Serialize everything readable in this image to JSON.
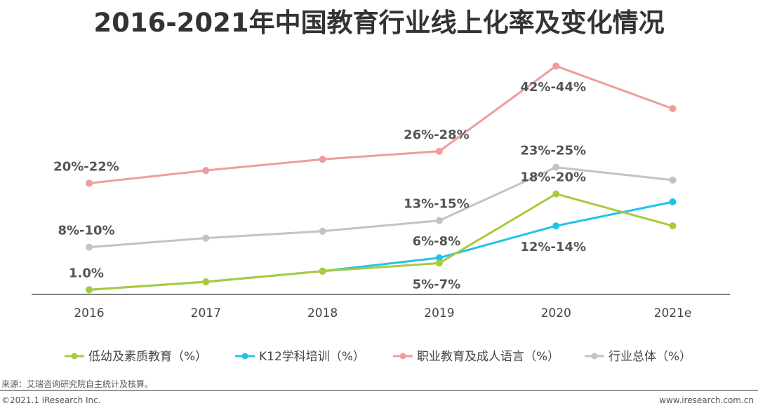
{
  "chart_data": {
    "type": "line",
    "title": "2016-2021年中国教育行业线上化率及变化情况",
    "categories": [
      "2016",
      "2017",
      "2018",
      "2019",
      "2020",
      "2021e"
    ],
    "ylim": [
      0,
      45
    ],
    "grid": false,
    "legend_position": "bottom",
    "series": [
      {
        "name": "低幼及素质教育（%）",
        "color": "#a8cb3c",
        "values": [
          1.0,
          2.5,
          4.5,
          6,
          19,
          13
        ]
      },
      {
        "name": "K12学科培训（%）",
        "color": "#22c3e8",
        "values": [
          1.0,
          2.5,
          4.5,
          7,
          13,
          17.5
        ]
      },
      {
        "name": "职业教育及成人语言（%）",
        "color": "#f09c9c",
        "values": [
          21,
          23.4,
          25.5,
          27,
          43,
          35
        ]
      },
      {
        "name": "行业总体（%）",
        "color": "#c3c3c3",
        "values": [
          9,
          10.7,
          12,
          14,
          24,
          21.6
        ]
      }
    ],
    "annotations": [
      {
        "series": 2,
        "x": 0,
        "text": "20%-22%",
        "pos": "above"
      },
      {
        "series": 3,
        "x": 0,
        "text": "8%-10%",
        "pos": "above"
      },
      {
        "series": 1,
        "x": 0,
        "text": "1.0%",
        "pos": "above"
      },
      {
        "series": 2,
        "x": 3,
        "text": "26%-28%",
        "pos": "above"
      },
      {
        "series": 3,
        "x": 3,
        "text": "13%-15%",
        "pos": "above"
      },
      {
        "series": 1,
        "x": 3,
        "text": "6%-8%",
        "pos": "above"
      },
      {
        "series": 0,
        "x": 3,
        "text": "5%-7%",
        "pos": "below"
      },
      {
        "series": 2,
        "x": 4,
        "text": "42%-44%",
        "pos": "below"
      },
      {
        "series": 3,
        "x": 4,
        "text": "23%-25%",
        "pos": "above"
      },
      {
        "series": 0,
        "x": 4,
        "text": "18%-20%",
        "pos": "above"
      },
      {
        "series": 1,
        "x": 4,
        "text": "12%-14%",
        "pos": "below"
      }
    ]
  },
  "footer": {
    "source": "来源：艾瑞咨询研究院自主统计及核算。",
    "copyright": "©2021.1 iResearch Inc.",
    "website": "www.iresearch.com.cn"
  }
}
